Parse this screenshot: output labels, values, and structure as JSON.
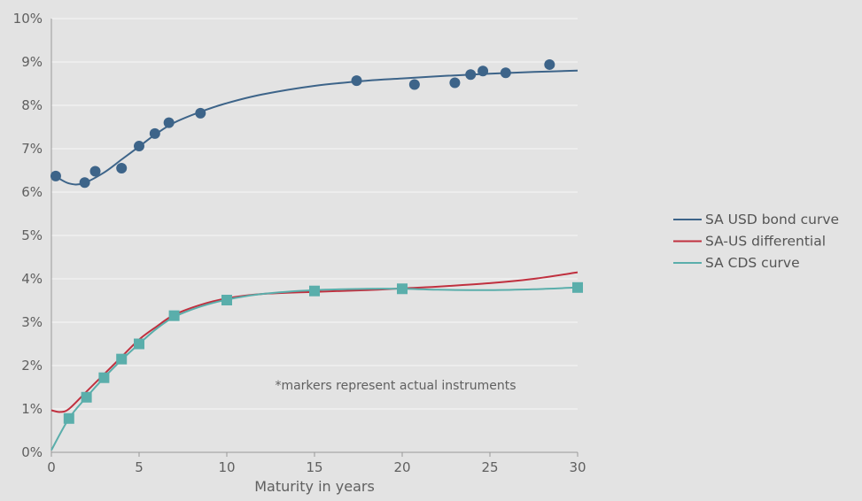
{
  "chart_data": {
    "type": "line",
    "xlabel": "Maturity in years",
    "ylabel": "",
    "xlim": [
      0,
      30
    ],
    "ylim": [
      0,
      10
    ],
    "x_ticks": [
      "0",
      "5",
      "10",
      "15",
      "20",
      "25",
      "30"
    ],
    "x_tick_values": [
      0,
      5,
      10,
      15,
      20,
      25,
      30
    ],
    "y_ticks": [
      "0%",
      "1%",
      "2%",
      "3%",
      "4%",
      "5%",
      "6%",
      "7%",
      "8%",
      "9%",
      "10%"
    ],
    "y_tick_values": [
      0,
      1,
      2,
      3,
      4,
      5,
      6,
      7,
      8,
      9,
      10
    ],
    "grid": "horizontal",
    "legend_position": "right",
    "annotation": "*markers represent actual instruments",
    "series": [
      {
        "name": "SA USD bond curve",
        "color": "#3d6489",
        "curve": [
          [
            0.25,
            6.36
          ],
          [
            1.0,
            6.2
          ],
          [
            1.8,
            6.2
          ],
          [
            3.0,
            6.45
          ],
          [
            4.0,
            6.75
          ],
          [
            5.0,
            7.05
          ],
          [
            6.0,
            7.35
          ],
          [
            7.0,
            7.6
          ],
          [
            8.5,
            7.85
          ],
          [
            10,
            8.05
          ],
          [
            12,
            8.25
          ],
          [
            15,
            8.45
          ],
          [
            18,
            8.57
          ],
          [
            20,
            8.62
          ],
          [
            22.5,
            8.68
          ],
          [
            25,
            8.73
          ],
          [
            27.5,
            8.77
          ],
          [
            30,
            8.8
          ]
        ],
        "points": [
          [
            0.25,
            6.37
          ],
          [
            1.9,
            6.22
          ],
          [
            2.5,
            6.48
          ],
          [
            4.0,
            6.55
          ],
          [
            5.0,
            7.06
          ],
          [
            5.9,
            7.35
          ],
          [
            6.7,
            7.6
          ],
          [
            8.5,
            7.82
          ],
          [
            17.4,
            8.57
          ],
          [
            20.7,
            8.48
          ],
          [
            23.0,
            8.52
          ],
          [
            23.9,
            8.71
          ],
          [
            24.6,
            8.79
          ],
          [
            25.9,
            8.75
          ],
          [
            28.4,
            8.94
          ]
        ]
      },
      {
        "name": "SA-US differential",
        "color": "#c0303f",
        "curve": [
          [
            0,
            0.97
          ],
          [
            0.5,
            0.93
          ],
          [
            1.0,
            1.0
          ],
          [
            2.0,
            1.4
          ],
          [
            3.0,
            1.8
          ],
          [
            4.0,
            2.2
          ],
          [
            5.0,
            2.6
          ],
          [
            6.0,
            2.9
          ],
          [
            7.0,
            3.17
          ],
          [
            8.5,
            3.4
          ],
          [
            10,
            3.55
          ],
          [
            12,
            3.65
          ],
          [
            15,
            3.7
          ],
          [
            18,
            3.74
          ],
          [
            20,
            3.78
          ],
          [
            22,
            3.82
          ],
          [
            25,
            3.9
          ],
          [
            27.5,
            4.0
          ],
          [
            30,
            4.15
          ]
        ],
        "points": []
      },
      {
        "name": "SA CDS curve",
        "color": "#5aaeab",
        "curve": [
          [
            0,
            0.05
          ],
          [
            1.0,
            0.78
          ],
          [
            2.0,
            1.27
          ],
          [
            3.0,
            1.72
          ],
          [
            4.0,
            2.13
          ],
          [
            5.0,
            2.5
          ],
          [
            6.0,
            2.85
          ],
          [
            7.0,
            3.12
          ],
          [
            8.5,
            3.36
          ],
          [
            10,
            3.52
          ],
          [
            12,
            3.65
          ],
          [
            15,
            3.74
          ],
          [
            18,
            3.77
          ],
          [
            20,
            3.77
          ],
          [
            22,
            3.75
          ],
          [
            25,
            3.74
          ],
          [
            27.5,
            3.76
          ],
          [
            30,
            3.8
          ]
        ],
        "points": [
          [
            1.0,
            0.78
          ],
          [
            2.0,
            1.27
          ],
          [
            3.0,
            1.72
          ],
          [
            4.0,
            2.15
          ],
          [
            5.0,
            2.5
          ],
          [
            7.0,
            3.15
          ],
          [
            10,
            3.51
          ],
          [
            15,
            3.72
          ],
          [
            20,
            3.77
          ],
          [
            30,
            3.8
          ]
        ]
      }
    ]
  }
}
